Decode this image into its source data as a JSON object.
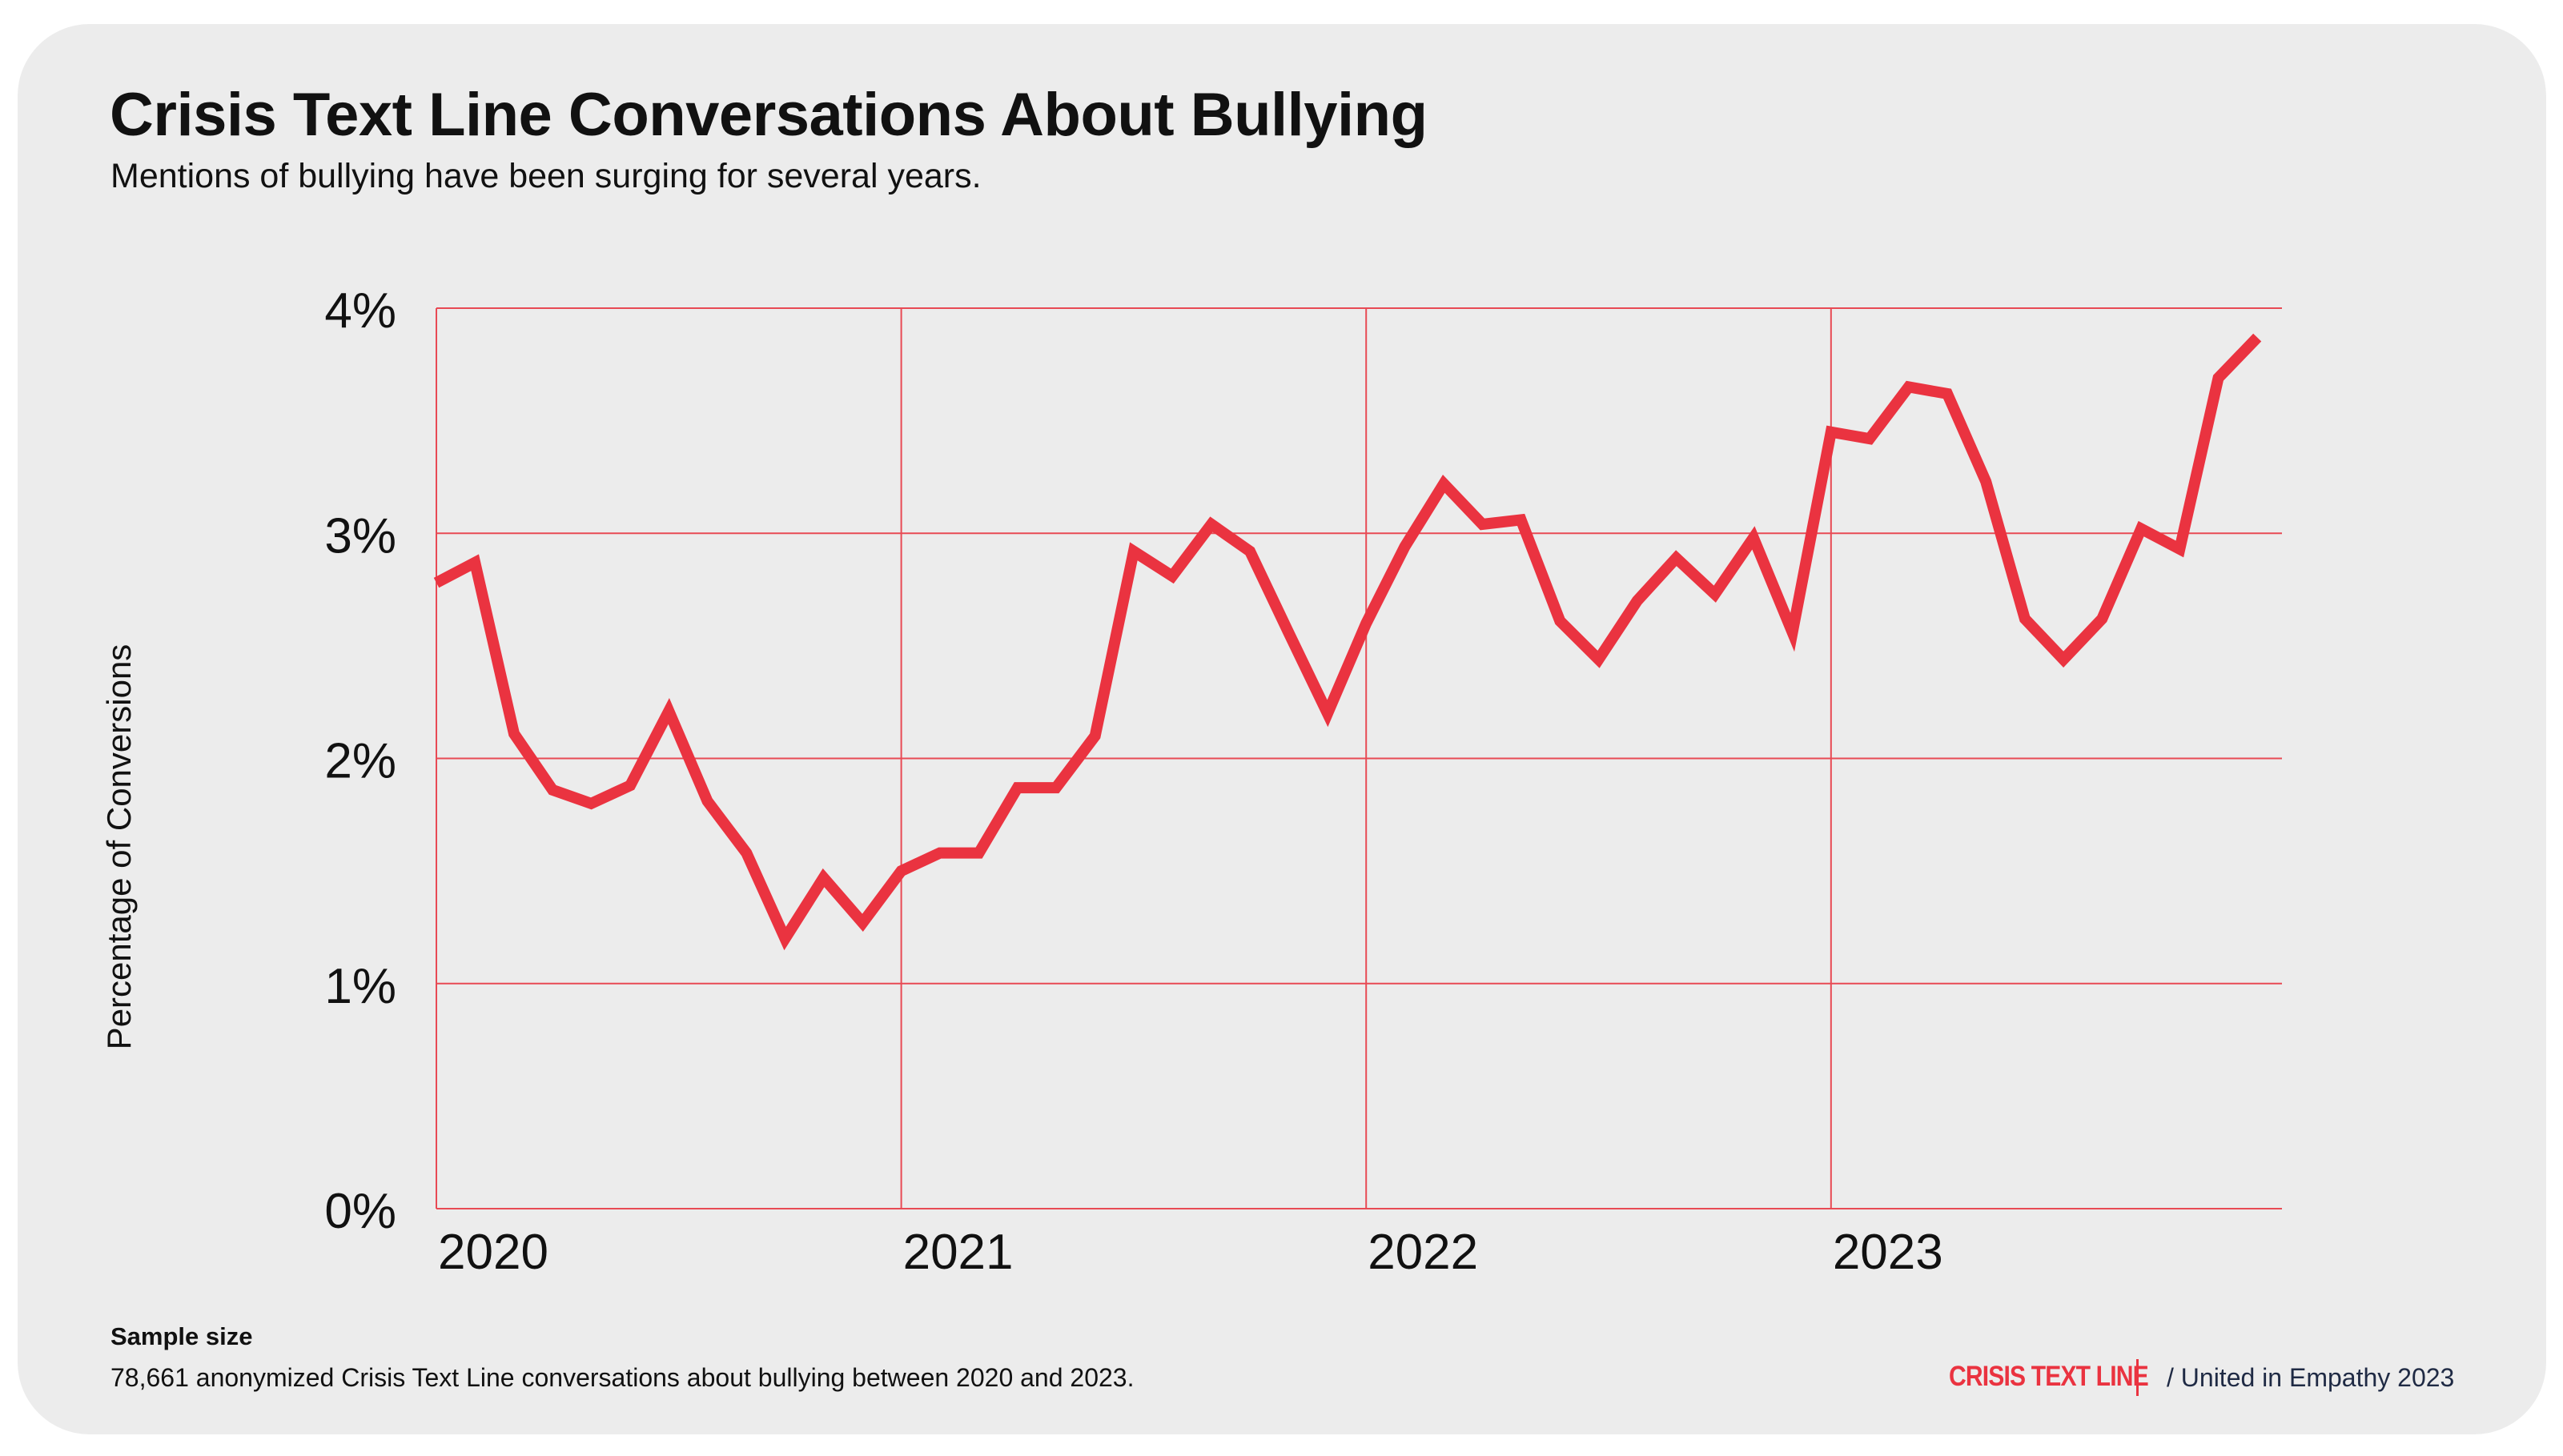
{
  "header": {
    "title": "Crisis Text Line Conversations About Bullying",
    "subtitle": "Mentions of bullying have been surging for several years."
  },
  "footer": {
    "sample_title": "Sample size",
    "sample_text": "78,661 anonymized Crisis Text Line conversations about bullying between 2020 and 2023.",
    "brand": "CRISIS TEXT LINE",
    "edition": "/  United in Empathy 2023"
  },
  "colors": {
    "line": "#ea3340",
    "grid": "#e84a54",
    "background": "#ececec",
    "text": "#111111"
  },
  "chart_data": {
    "type": "line",
    "title": "Crisis Text Line Conversations About Bullying",
    "subtitle": "Mentions of bullying have been surging for several years.",
    "xlabel": "",
    "ylabel": "Percentage of Conversions",
    "xlim": [
      2020,
      2023.97
    ],
    "ylim": [
      0,
      4
    ],
    "x_ticks": [
      2020,
      2021,
      2022,
      2023
    ],
    "x_tick_labels": [
      "2020",
      "2021",
      "2022",
      "2023"
    ],
    "y_ticks": [
      0,
      1,
      2,
      3,
      4
    ],
    "y_tick_labels": [
      "0%",
      "1%",
      "2%",
      "3%",
      "4%"
    ],
    "grid": true,
    "legend": "none",
    "series": [
      {
        "x": [
          2020.0,
          2020.083,
          2020.167,
          2020.25,
          2020.333,
          2020.417,
          2020.5,
          2020.583,
          2020.667,
          2020.75,
          2020.833,
          2020.917,
          2021.0,
          2021.083,
          2021.167,
          2021.25,
          2021.333,
          2021.417,
          2021.5,
          2021.583,
          2021.667,
          2021.75,
          2021.833,
          2021.917,
          2022.0,
          2022.083,
          2022.167,
          2022.25,
          2022.333,
          2022.417,
          2022.5,
          2022.583,
          2022.667,
          2022.75,
          2022.833,
          2022.917,
          2023.0,
          2023.083,
          2023.167,
          2023.25,
          2023.333,
          2023.417,
          2023.5,
          2023.583,
          2023.667,
          2023.75,
          2023.833,
          2023.917
        ],
        "y": [
          2.78,
          2.87,
          2.11,
          1.86,
          1.8,
          1.88,
          2.21,
          1.81,
          1.58,
          1.2,
          1.47,
          1.27,
          1.5,
          1.58,
          1.58,
          1.87,
          1.87,
          2.1,
          2.92,
          2.81,
          3.04,
          2.92,
          2.56,
          2.2,
          2.6,
          2.94,
          3.22,
          3.04,
          3.06,
          2.61,
          2.44,
          2.7,
          2.89,
          2.73,
          2.98,
          2.56,
          3.45,
          3.42,
          3.65,
          3.62,
          3.23,
          2.62,
          2.44,
          2.62,
          3.02,
          2.93,
          3.69,
          3.87
        ]
      }
    ]
  }
}
